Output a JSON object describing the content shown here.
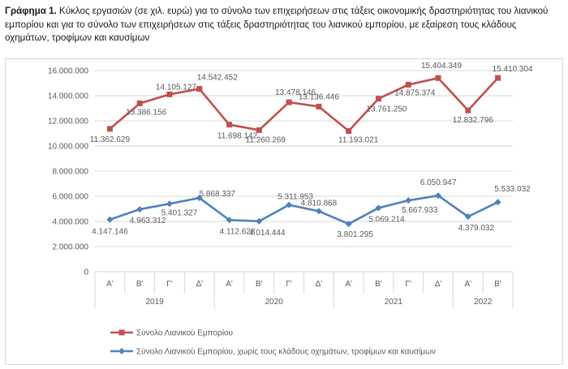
{
  "caption": {
    "label": "Γράφημα 1.",
    "text": "Κύκλος εργασιών (σε χιλ. ευρώ) για το σύνολο των επιχειρήσεων στις τάξεις οικονομικής δραστηριότητας του λιανικού εμπορίου και για το σύνολο των επιχειρήσεων στις τάξεις δραστηριότητας του λιανικού εμπορίου, με εξαίρεση τους κλάδους οχημάτων, τροφίμων και καυσίμων"
  },
  "chart_data": {
    "type": "line",
    "x_quarters": [
      "Α'",
      "Β'",
      "Γ'",
      "Δ'",
      "Α'",
      "Β'",
      "Γ'",
      "Δ'",
      "Α'",
      "Β'",
      "Γ'",
      "Δ'",
      "Α'",
      "Β'"
    ],
    "x_years": [
      {
        "label": "2019",
        "span": 4
      },
      {
        "label": "2020",
        "span": 4
      },
      {
        "label": "2021",
        "span": 4
      },
      {
        "label": "2022",
        "span": 2
      }
    ],
    "ylim": [
      0,
      16000000
    ],
    "yticks": [
      0,
      2000000,
      4000000,
      6000000,
      8000000,
      10000000,
      12000000,
      14000000,
      16000000
    ],
    "ytick_labels": [
      "0",
      "2.000.000",
      "4.000.000",
      "6.000.000",
      "8.000.000",
      "10.000.000",
      "12.000.000",
      "14.000.000",
      "16.000.000"
    ],
    "grid": true,
    "legend_position": "bottom",
    "series": [
      {
        "name": "Σύνολο Λιανικού Εμπορίου",
        "color": "#c0504d",
        "marker": "square",
        "values": [
          11362629,
          13386156,
          14105127,
          14542452,
          11698142,
          11260269,
          13478146,
          13136446,
          11193021,
          13761250,
          14875374,
          15404349,
          12832796,
          15410304
        ],
        "labels": [
          "11.362.629",
          "13.386.156",
          "14.105.127",
          "14.542.452",
          "11.698.142",
          "11.260.269",
          "13.478.146",
          "13.136.446",
          "11.193.021",
          "13.761.250",
          "14.875.374",
          "15.404.349",
          "12.832.796",
          "15.410.304"
        ]
      },
      {
        "name": "Σύνολο Λιανικού Εμπορίου, χωρίς τους κλάδους οχημάτων, τροφίμων και καυσίμων",
        "color": "#4f81bd",
        "marker": "diamond",
        "values": [
          4147146,
          4963312,
          5401327,
          5868337,
          4112628,
          4014444,
          5311953,
          4810868,
          3801295,
          5069214,
          5667933,
          6050947,
          4379032,
          5533032
        ],
        "labels": [
          "4.147.146",
          "4.963.312",
          "5.401.327",
          "5.868.337",
          "4.112.628",
          "4.014.444",
          "5.311.953",
          "4.810.868",
          "3.801.295",
          "5.069.214",
          "5.667.933",
          "6.050.947",
          "4.379.032",
          "5.533.032"
        ]
      }
    ]
  }
}
